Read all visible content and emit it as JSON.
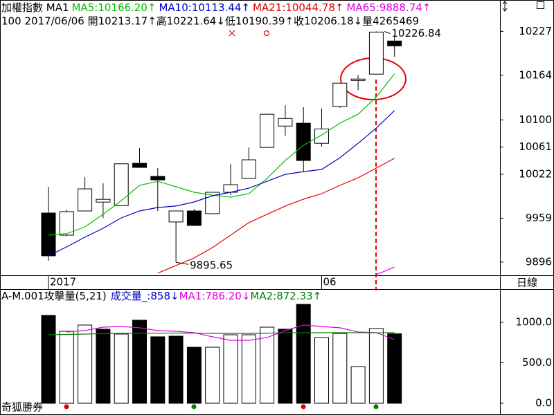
{
  "chart_data": [
    {
      "type": "candlestick",
      "title": "加權指數 MA1",
      "subtitle": "100 2017/06/06 開10213.17↑高10221.64↓低10190.39↑收10206.18↓量4265469",
      "categories": [
        "2017",
        null,
        null,
        null,
        null,
        null,
        null,
        null,
        null,
        null,
        null,
        null,
        null,
        null,
        null,
        "06",
        null,
        null,
        null,
        null
      ],
      "open": [
        9966.3,
        9934.6,
        9969.3,
        9982,
        9977,
        10037.7,
        10018.9,
        9953.5,
        9969.3,
        9965.4,
        9996.1,
        10015.9,
        10060.5,
        10091.1,
        10095.2,
        10066.4,
        10119.2,
        10156.6,
        10165.6,
        10213.17
      ],
      "high": [
        10004,
        9971.3,
        10018,
        10009.1,
        10037,
        10059.5,
        10030.8,
        9969.3,
        9972.3,
        9996.1,
        10036.7,
        10060.5,
        10108.1,
        10121,
        10118.2,
        10116.2,
        10152.7,
        10164.6,
        10226.84,
        10221.64
      ],
      "low": [
        9898,
        9932.6,
        9969.3,
        9959.4,
        9977,
        10031.8,
        9969.3,
        9895.65,
        9948.5,
        9965.4,
        9992.1,
        10015.9,
        10060.5,
        10077.3,
        10025.8,
        10061.5,
        10117.2,
        10142.8,
        10165,
        10190.39
      ],
      "close": [
        9904.9,
        9968.3,
        10001,
        9986,
        10037,
        10031.8,
        10013.9,
        9969.3,
        9948.5,
        9996.1,
        10007,
        10042.7,
        10108.1,
        10102,
        10041.7,
        10087,
        10152.7,
        10158.6,
        10226,
        10206.18
      ],
      "up_color": "#ffffff",
      "down_color": "#000000",
      "series": [
        {
          "name": "MA5",
          "label": "MA5:10166.20↑",
          "color": "#00c000",
          "values": [
            9934.6,
            9936.6,
            9946.5,
            9964.4,
            9984.2,
            10006,
            10011.9,
            10004,
            9996.1,
            9992.1,
            9989.1,
            9994.1,
            10015.9,
            10041.7,
            10063.5,
            10078.3,
            10095.2,
            10108.1,
            10132.8,
            10166.2
          ]
        },
        {
          "name": "MA10",
          "label": "MA10:10113.44↑",
          "color": "#0000c0",
          "values": [
            9904.9,
            9917.8,
            9931.7,
            9944.5,
            9959.4,
            9969.3,
            9974.3,
            9976.3,
            9982.2,
            9991.1,
            9996.1,
            10002,
            10011.9,
            10021.8,
            10025.8,
            10028.8,
            10045.6,
            10066.4,
            10088.2,
            10113.44
          ]
        },
        {
          "name": "MA21",
          "label": "MA21:10044.78↑",
          "color": "#e00000",
          "values": [
            null,
            null,
            null,
            null,
            null,
            null,
            9880.1,
            9891,
            9901.9,
            9916.8,
            9934.6,
            9952.5,
            9964.4,
            9976.3,
            9986.2,
            9994.1,
            10006,
            10016.9,
            10030.8,
            10044.78
          ]
        },
        {
          "name": "MA65",
          "label": "MA65:9888.74↑",
          "color": "#e000e0",
          "values": [
            null,
            null,
            null,
            null,
            null,
            null,
            null,
            null,
            null,
            null,
            null,
            null,
            null,
            null,
            null,
            null,
            null,
            null,
            9878.1,
            9888.74
          ]
        }
      ],
      "annotations": [
        {
          "label": "10226.84",
          "value": 10226.84
        },
        {
          "label": "9895.65",
          "value": 9895.65
        }
      ],
      "ylim": [
        9877,
        10272
      ],
      "yticks": [
        10227,
        10164,
        10100,
        10061,
        10022,
        9959,
        9896
      ],
      "period_label": "日線"
    },
    {
      "type": "bar",
      "title": "A-M.001攻擊量(5,21)",
      "volume_label": "成交量_:858↓",
      "volume_label_color": "#0000c0",
      "values": [
        1085,
        889,
        966,
        915,
        855,
        1026,
        821,
        829,
        692,
        692,
        846,
        846,
        940,
        915,
        1222,
        812,
        863,
        453,
        923,
        858
      ],
      "series": [
        {
          "name": "MA1",
          "label": "MA1:786.20↓",
          "color": "#e000e0",
          "values": [
            null,
            880,
            897,
            940,
            949,
            932,
            897,
            889,
            872,
            821,
            778,
            778,
            812,
            897,
            966,
            949,
            932,
            880,
            872,
            786.2
          ]
        },
        {
          "name": "MA2",
          "label": "MA2:872.33↑",
          "color": "#008000",
          "values": [
            846,
            850,
            855,
            860,
            863,
            866,
            866,
            866,
            866,
            863,
            863,
            863,
            866,
            870,
            872,
            872,
            872,
            872,
            870,
            872.33
          ]
        }
      ],
      "ylim": [
        -128,
        1410
      ],
      "yticks": [
        {
          "value": 1000,
          "label": "1000.0"
        },
        {
          "value": 500,
          "label": "500.0"
        },
        {
          "value": 0,
          "label": "0.0"
        }
      ],
      "footer": "奇狐勝券"
    }
  ]
}
